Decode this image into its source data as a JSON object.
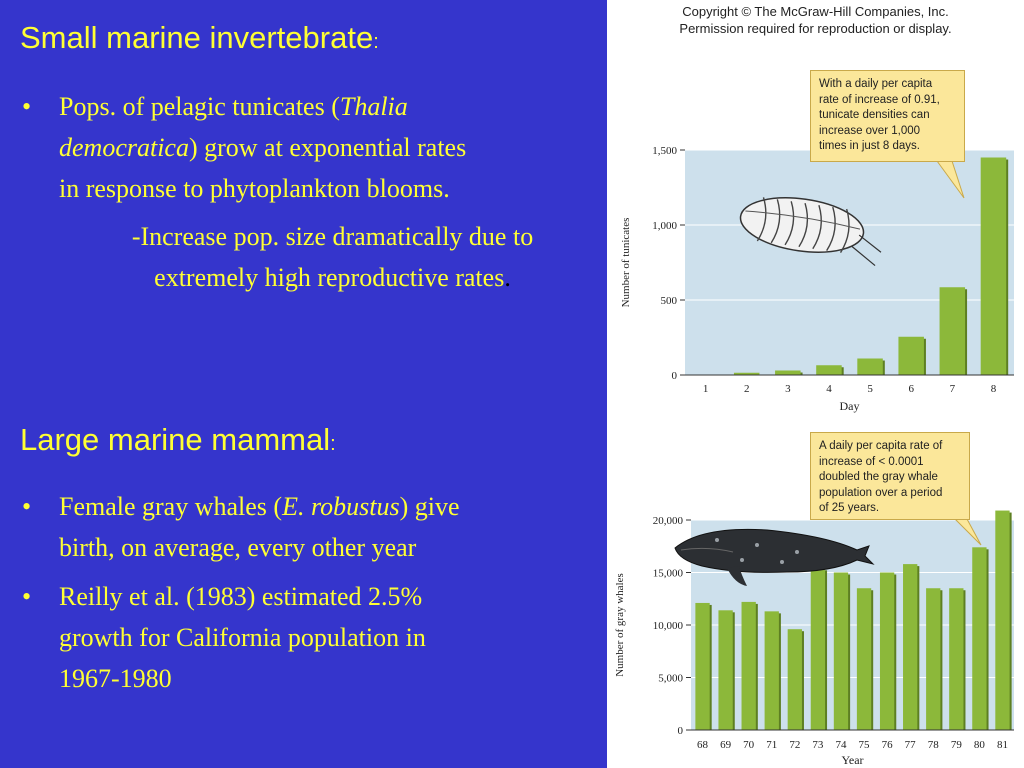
{
  "left": {
    "section1": {
      "heading": "Small marine invertebrate",
      "heading_colon": ":",
      "bullet_1_pre": "Pops. of pelagic tunicates (",
      "bullet_1_italic_1": "Thalia",
      "bullet_1_italic_2": "democratica",
      "bullet_1_post": ") grow at exponential rates",
      "bullet_1_line3": "in response to phytoplankton blooms.",
      "sub_line1": "-Increase pop. size dramatically due to",
      "sub_line2": "extremely high reproductive rates",
      "sub_dot": "."
    },
    "section2": {
      "heading": "Large marine mammal",
      "heading_colon": ":",
      "bullet_1_pre": "Female gray whales (",
      "bullet_1_italic": "E. robustus",
      "bullet_1_post": ") give",
      "bullet_1_line2": "birth, on average, every other year",
      "bullet_2_line1": "Reilly et al. (1983) estimated 2.5%",
      "bullet_2_line2": "growth for California population in",
      "bullet_2_line3": "1967-1980"
    },
    "bullet_char": "•"
  },
  "right": {
    "copyright_line1": "Copyright © The McGraw-Hill Companies, Inc.",
    "copyright_line2": "Permission required for reproduction or display.",
    "callout1": [
      "With a daily per capita",
      "rate of increase of 0.91,",
      "tunicate densities can",
      "increase over 1,000",
      "times in just 8 days."
    ],
    "callout2": [
      "A daily per capita rate of",
      "increase of < 0.0001",
      "doubled the gray whale",
      "population over a period",
      "of 25 years."
    ],
    "icons": [
      "tunicate-illustration",
      "gray-whale-illustration"
    ]
  },
  "colors": {
    "background": "#3535cc",
    "text": "#ffff33",
    "bar": "#8cb83a",
    "plot_bg": "#cde0ec",
    "callout": "#fbe79a"
  },
  "chart_data": [
    {
      "type": "bar",
      "categories": [
        "1",
        "2",
        "3",
        "4",
        "5",
        "6",
        "7",
        "8"
      ],
      "values": [
        2,
        15,
        30,
        65,
        110,
        255,
        585,
        1450
      ],
      "xlabel": "Day",
      "ylabel": "Number of tunicates",
      "yticks": [
        "0",
        "500",
        "1,000",
        "1,500"
      ],
      "ylim": [
        0,
        1500
      ],
      "grid": true
    },
    {
      "type": "bar",
      "categories": [
        "68",
        "69",
        "70",
        "71",
        "72",
        "73",
        "74",
        "75",
        "76",
        "77",
        "78",
        "79",
        "80",
        "81"
      ],
      "values": [
        12100,
        11400,
        12200,
        11300,
        9600,
        15400,
        15000,
        13500,
        15000,
        15800,
        13500,
        13500,
        17400,
        20900
      ],
      "xlabel": "Year",
      "ylabel": "Number of gray whales",
      "yticks": [
        "0",
        "5,000",
        "10,000",
        "15,000",
        "20,000"
      ],
      "ylim": [
        0,
        20000
      ],
      "grid": true
    }
  ]
}
